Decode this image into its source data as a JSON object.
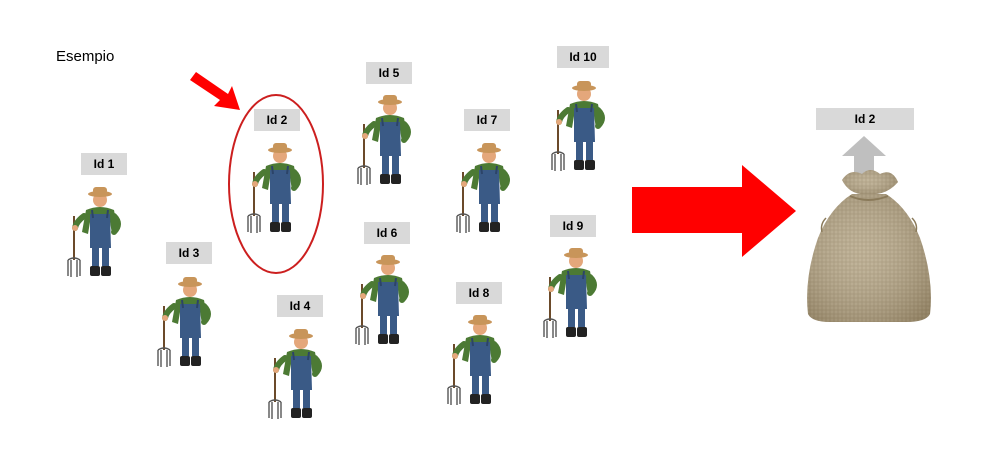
{
  "title": "Esempio",
  "farmers": [
    {
      "id": "Id 1"
    },
    {
      "id": "Id 2"
    },
    {
      "id": "Id 3"
    },
    {
      "id": "Id 4"
    },
    {
      "id": "Id 5"
    },
    {
      "id": "Id 6"
    },
    {
      "id": "Id 7"
    },
    {
      "id": "Id 8"
    },
    {
      "id": "Id 9"
    },
    {
      "id": "Id 10"
    }
  ],
  "bag": {
    "label": "Id 2"
  },
  "colors": {
    "arrow": "#ff0000",
    "highlight": "#cc1f1f",
    "label_bg": "#d9d9d9",
    "up_arrow": "#bfbfbf",
    "overalls": "#3a5a86",
    "shirt": "#4c7a34",
    "hat": "#c8955a",
    "skin": "#e4a77b",
    "burlap": "#b8a98a"
  }
}
